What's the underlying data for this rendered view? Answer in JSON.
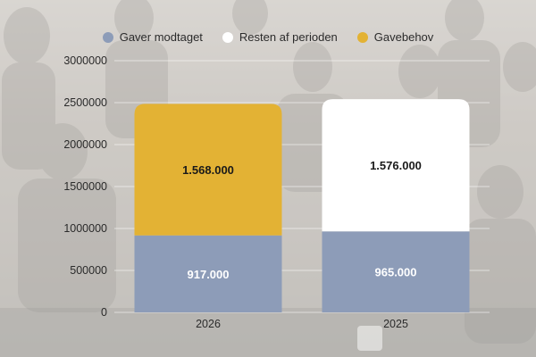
{
  "chart_data": {
    "type": "bar",
    "stacked": true,
    "categories": [
      "2026",
      "2025"
    ],
    "ylim": [
      0,
      3000000
    ],
    "yticks": [
      0,
      500000,
      1000000,
      1500000,
      2000000,
      2500000,
      3000000
    ],
    "grid": true,
    "legend_position": "top",
    "series": [
      {
        "name": "Gaver modtaget",
        "color": "#8d9cb8",
        "values": [
          917000,
          965000
        ],
        "labels": [
          "917.000",
          "965.000"
        ],
        "label_color": "#ffffff"
      },
      {
        "name": "Resten af perioden",
        "color": "#ffffff",
        "values": [
          0,
          1576000
        ],
        "labels": [
          "",
          "1.576.000"
        ],
        "label_color": "#1a1a1a"
      },
      {
        "name": "Gavebehov",
        "color": "#e3b234",
        "values": [
          1568000,
          0
        ],
        "labels": [
          "1.568.000",
          ""
        ],
        "label_color": "#1a1a1a"
      }
    ]
  }
}
